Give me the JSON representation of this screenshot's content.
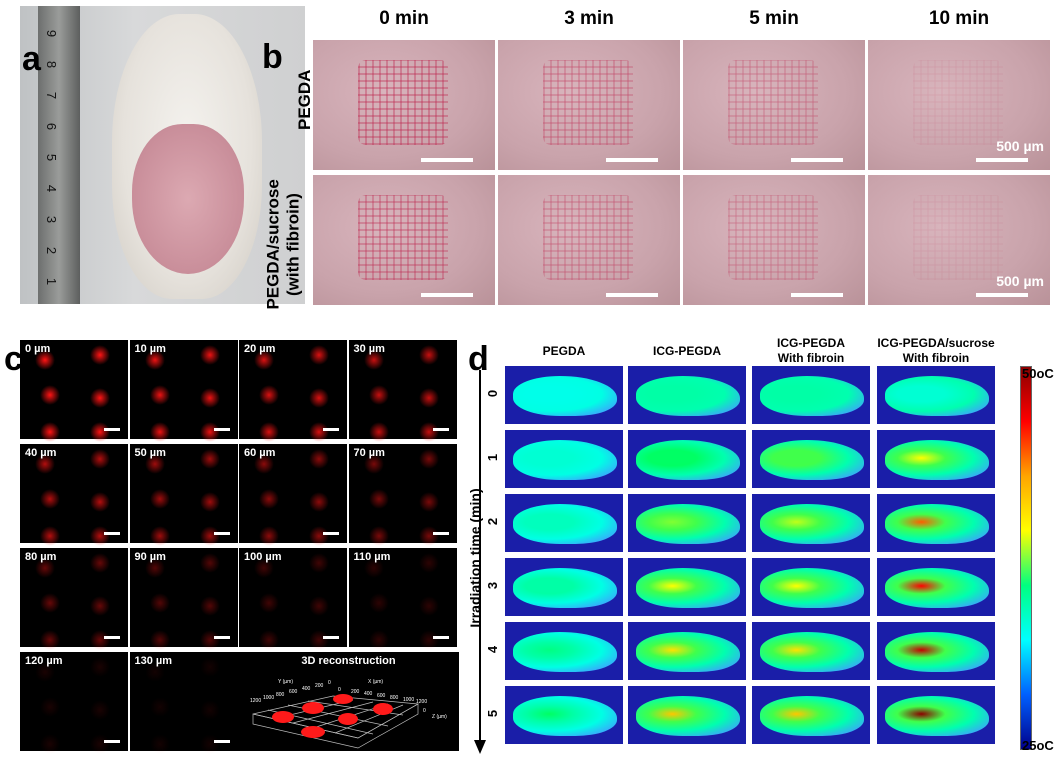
{
  "panels": {
    "a": {
      "label": "a",
      "ruler_marks": [
        "9",
        "8",
        "7",
        "6",
        "5",
        "4",
        "3",
        "2",
        "1"
      ]
    },
    "b": {
      "label": "b",
      "columns": [
        "0 min",
        "3 min",
        "5 min",
        "10 min"
      ],
      "rows": [
        "PEGDA",
        "PEGDA/sucrose\n(with fibroin)"
      ],
      "row_lines": [
        [
          "PEGDA"
        ],
        [
          "PEGDA/sucrose",
          "(with fibroin)"
        ]
      ],
      "scale_bar": "500 µm"
    },
    "c": {
      "label": "c",
      "depths": [
        "0 µm",
        "10 µm",
        "20 µm",
        "30 µm",
        "40 µm",
        "50 µm",
        "60 µm",
        "70 µm",
        "80 µm",
        "90 µm",
        "100 µm",
        "110 µm",
        "120 µm",
        "130 µm"
      ],
      "reconstruction": {
        "title": "3D reconstruction",
        "y_axis": "Y (µm)",
        "x_axis": "X (µm)",
        "z_axis": "Z (µm)",
        "y_ticks": [
          "1200",
          "1000",
          "800",
          "600",
          "400",
          "200",
          "0"
        ],
        "x_ticks": [
          "0",
          "200",
          "400",
          "600",
          "800",
          "1000",
          "1200"
        ],
        "z_tick": "0"
      }
    },
    "d": {
      "label": "d",
      "columns": [
        [
          "PEGDA"
        ],
        [
          "ICG-PEGDA"
        ],
        [
          "ICG-PEGDA",
          "With fibroin"
        ],
        [
          "ICG-PEGDA/sucrose",
          "With fibroin"
        ]
      ],
      "times": [
        "0",
        "1",
        "2",
        "3",
        "4",
        "5"
      ],
      "axis_label": "Irradiation time (min)",
      "colorbar": {
        "max": "50oC",
        "min": "25oC",
        "colors": [
          "#8b0000",
          "#ff0000",
          "#ffa500",
          "#ffff00",
          "#00ff80",
          "#00ffff",
          "#0060ff",
          "#00008b"
        ]
      }
    }
  }
}
